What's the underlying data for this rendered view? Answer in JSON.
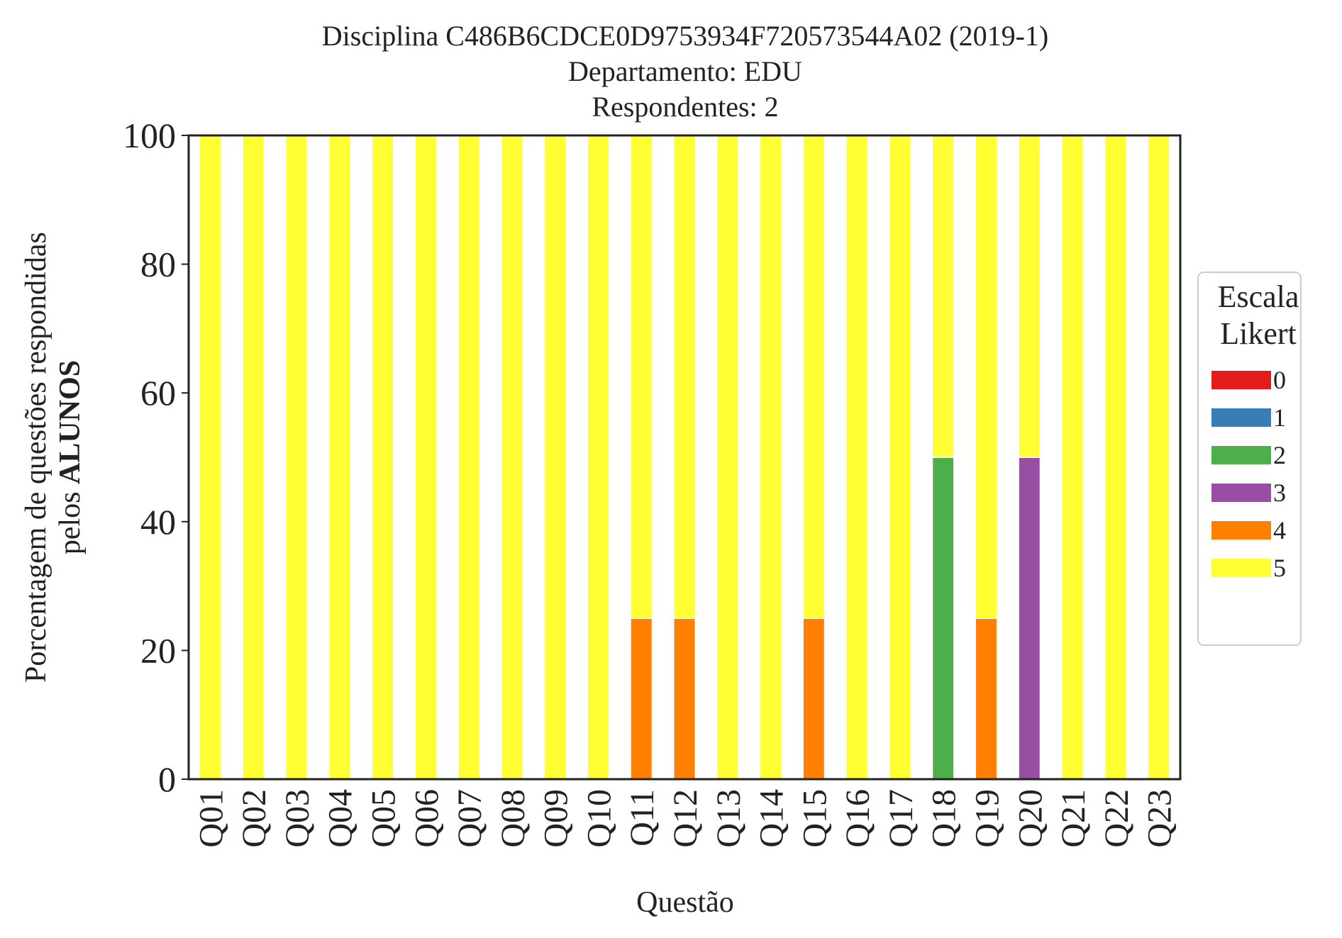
{
  "chart_data": {
    "type": "bar",
    "stacked": true,
    "title_lines": [
      "Disciplina C486B6CDCE0D9753934F720573544A02 (2019-1)",
      "Departamento: EDU",
      "Respondentes: 2"
    ],
    "xlabel": "Questão",
    "ylabel_line1": "Porcentagem de questões respondidas",
    "ylabel_line2_prefix": "pelos ",
    "ylabel_line2_bold": "ALUNOS",
    "ylim": [
      0,
      100
    ],
    "yticks": [
      0,
      20,
      40,
      60,
      80,
      100
    ],
    "grid": false,
    "legend": {
      "title_lines": [
        "Escala",
        "Likert"
      ],
      "placement": "right"
    },
    "categories": [
      "Q01",
      "Q02",
      "Q03",
      "Q04",
      "Q05",
      "Q06",
      "Q07",
      "Q08",
      "Q09",
      "Q10",
      "Q11",
      "Q12",
      "Q13",
      "Q14",
      "Q15",
      "Q16",
      "Q17",
      "Q18",
      "Q19",
      "Q20",
      "Q21",
      "Q22",
      "Q23"
    ],
    "series": [
      {
        "name": "0",
        "color": "#e41a1c",
        "values": [
          0,
          0,
          0,
          0,
          0,
          0,
          0,
          0,
          0,
          0,
          0,
          0,
          0,
          0,
          0,
          0,
          0,
          0,
          0,
          0,
          0,
          0,
          0
        ]
      },
      {
        "name": "1",
        "color": "#377eb8",
        "values": [
          0,
          0,
          0,
          0,
          0,
          0,
          0,
          0,
          0,
          0,
          0,
          0,
          0,
          0,
          0,
          0,
          0,
          0,
          0,
          0,
          0,
          0,
          0
        ]
      },
      {
        "name": "2",
        "color": "#4daf4a",
        "values": [
          0,
          0,
          0,
          0,
          0,
          0,
          0,
          0,
          0,
          0,
          0,
          0,
          0,
          0,
          0,
          0,
          0,
          50,
          0,
          0,
          0,
          0,
          0
        ]
      },
      {
        "name": "3",
        "color": "#984ea3",
        "values": [
          0,
          0,
          0,
          0,
          0,
          0,
          0,
          0,
          0,
          0,
          0,
          0,
          0,
          0,
          0,
          0,
          0,
          0,
          0,
          50,
          0,
          0,
          0
        ]
      },
      {
        "name": "4",
        "color": "#ff7f00",
        "values": [
          0,
          0,
          0,
          0,
          0,
          0,
          0,
          0,
          0,
          0,
          25,
          25,
          0,
          0,
          25,
          0,
          0,
          0,
          25,
          0,
          0,
          0,
          0
        ]
      },
      {
        "name": "5",
        "color": "#ffff33",
        "values": [
          100,
          100,
          100,
          100,
          100,
          100,
          100,
          100,
          100,
          100,
          75,
          75,
          100,
          100,
          75,
          100,
          100,
          50,
          75,
          50,
          100,
          100,
          100
        ]
      }
    ]
  }
}
